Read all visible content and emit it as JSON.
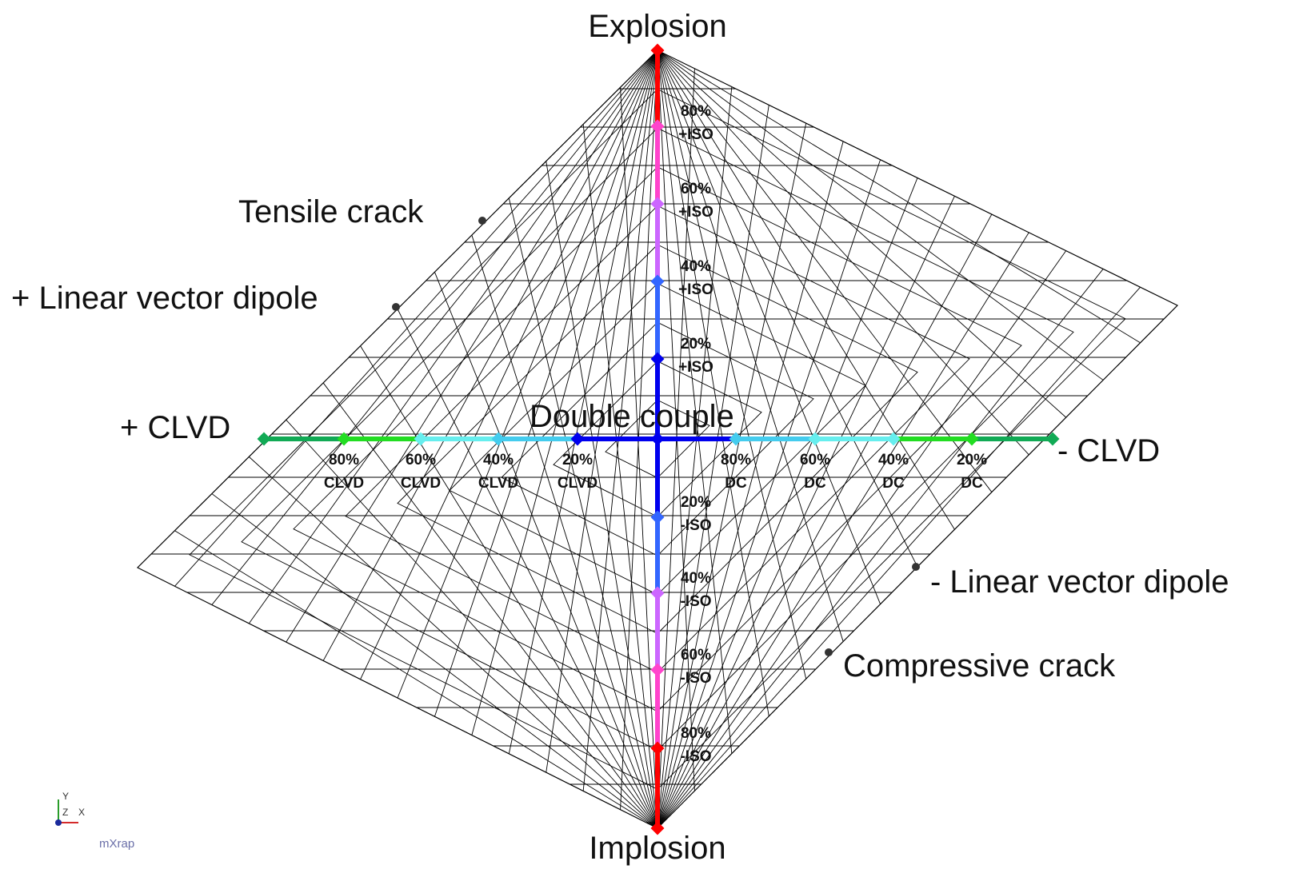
{
  "labels": {
    "explosion": "Explosion",
    "implosion": "Implosion",
    "plus_clvd": "+ CLVD",
    "minus_clvd": "- CLVD",
    "double_couple": "Double couple",
    "tensile_crack": "Tensile crack",
    "plus_lvd": "+ Linear vector dipole",
    "minus_lvd": "- Linear vector dipole",
    "compressive_crack": "Compressive crack"
  },
  "iso_markers": [
    {
      "pct": "80%",
      "tag": "+ISO",
      "color": "#ff44cc"
    },
    {
      "pct": "60%",
      "tag": "+ISO",
      "color": "#cc66ff"
    },
    {
      "pct": "40%",
      "tag": "+ISO",
      "color": "#3366ff"
    },
    {
      "pct": "20%",
      "tag": "+ISO",
      "color": "#0000ee"
    },
    {
      "pct": "20%",
      "tag": "-ISO",
      "color": "#3366ff"
    },
    {
      "pct": "40%",
      "tag": "-ISO",
      "color": "#cc66ff"
    },
    {
      "pct": "60%",
      "tag": "-ISO",
      "color": "#ff44cc"
    },
    {
      "pct": "80%",
      "tag": "-ISO",
      "color": "#ff0000"
    }
  ],
  "clvd_markers": [
    {
      "pct": "80%",
      "tag": "CLVD",
      "color": "#22dd22"
    },
    {
      "pct": "60%",
      "tag": "CLVD",
      "color": "#66eeee"
    },
    {
      "pct": "40%",
      "tag": "CLVD",
      "color": "#44ccee"
    },
    {
      "pct": "20%",
      "tag": "CLVD",
      "color": "#0000ee"
    }
  ],
  "dc_markers": [
    {
      "pct": "80%",
      "tag": "DC",
      "color": "#44ccee"
    },
    {
      "pct": "60%",
      "tag": "DC",
      "color": "#66eeee"
    },
    {
      "pct": "40%",
      "tag": "DC",
      "color": "#66eeee"
    },
    {
      "pct": "20%",
      "tag": "DC",
      "color": "#22dd22"
    }
  ],
  "colors": {
    "red": "#ff0000",
    "magenta": "#ff44cc",
    "violet": "#cc66ff",
    "blue_light": "#3366ff",
    "blue": "#0000ee",
    "cyan": "#44ccee",
    "cyan_light": "#66eeee",
    "green": "#22dd22",
    "green_dark": "#11aa55"
  },
  "axis_indicator": {
    "y": "Y",
    "z": "Z",
    "x": "X"
  },
  "brand": "mXrap"
}
